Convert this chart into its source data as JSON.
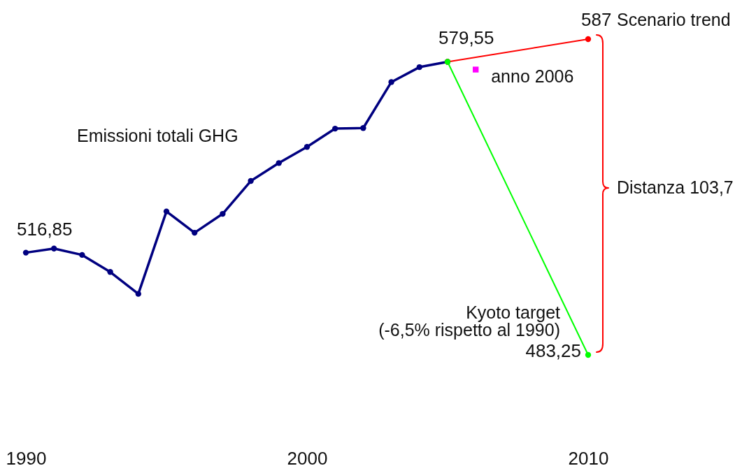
{
  "chart_data": {
    "type": "line",
    "marker": "circle",
    "tick_labels": "x",
    "xlim": [
      1990,
      2010
    ],
    "xticks": [
      1990,
      2000,
      2010
    ],
    "series": [
      {
        "name": "Emissioni totali GHG",
        "color": "#000080",
        "x": [
          1990,
          1991,
          1992,
          1993,
          1994,
          1995,
          1996,
          1997,
          1998,
          1999,
          2000,
          2001,
          2002,
          2003,
          2004,
          2005
        ],
        "values": [
          516.85,
          518.2,
          516.1,
          510.5,
          503.3,
          530.4,
          523.4,
          529.6,
          540.4,
          546.3,
          551.6,
          557.6,
          557.8,
          572.9,
          577.8,
          579.55
        ],
        "value_labels": [
          "516,85",
          null,
          null,
          null,
          null,
          null,
          null,
          null,
          null,
          null,
          null,
          null,
          null,
          null,
          null,
          "579,55"
        ]
      },
      {
        "name": "Scenario trend",
        "color": "#ff0000",
        "x": [
          2005,
          2010
        ],
        "values": [
          579.55,
          587
        ],
        "value_labels": [
          null,
          "587"
        ]
      },
      {
        "name": "Kyoto target\n(-6,5% rispetto al 1990)",
        "color": "#00ff00",
        "x": [
          2005,
          2010
        ],
        "values": [
          579.55,
          483.25
        ],
        "value_labels": [
          null,
          "483,25"
        ]
      },
      {
        "name": "anno 2006",
        "type": "scatter",
        "color": "#ff00ff",
        "marker": "square",
        "x": [
          2006
        ],
        "values": [
          577
        ]
      }
    ],
    "annotations": [
      "Distanza 103,7"
    ]
  }
}
